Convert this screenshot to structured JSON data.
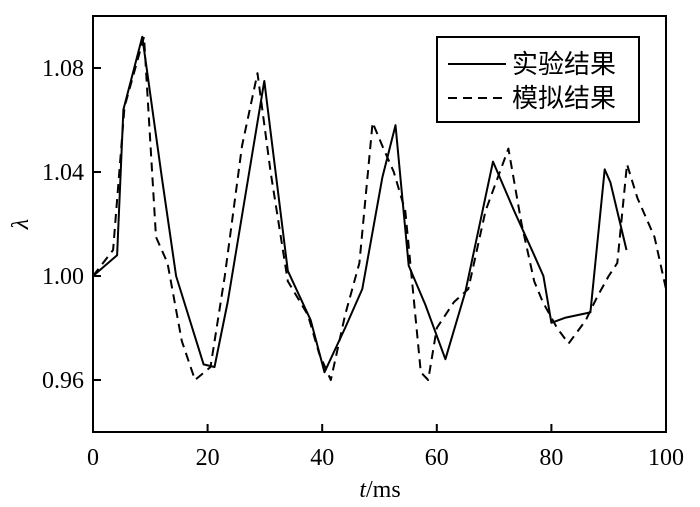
{
  "chart_data": {
    "type": "line",
    "xlabel_italic": "t",
    "xlabel_unit": "/ms",
    "ylabel": "λ",
    "xlim": [
      0,
      100
    ],
    "ylim": [
      0.94,
      1.1
    ],
    "x_ticks": [
      0,
      20,
      40,
      60,
      80,
      100
    ],
    "x_tick_labels": [
      "0",
      "20",
      "40",
      "60",
      "80",
      "100"
    ],
    "y_ticks": [
      0.96,
      1.0,
      1.04,
      1.08
    ],
    "y_tick_labels": [
      "0.96",
      "1.00",
      "1.04",
      "1.08"
    ],
    "legend_position": "top-right",
    "series": [
      {
        "name": "实验结果",
        "style": "solid",
        "x": [
          0,
          4.2,
          5.3,
          8.6,
          12,
          14.5,
          19.3,
          21.2,
          23.5,
          29.9,
          34,
          38,
          40.4,
          44,
          47,
          50.5,
          52.8,
          55.1,
          58,
          61.5,
          65,
          69.8,
          73.5,
          77,
          78.6,
          80,
          82.5,
          86.8,
          89.3,
          90.3,
          93.1
        ],
        "y": [
          1.0,
          1.008,
          1.064,
          1.092,
          1.038,
          1.0,
          0.966,
          0.965,
          0.99,
          1.075,
          1.002,
          0.983,
          0.963,
          0.98,
          0.995,
          1.038,
          1.058,
          1.004,
          0.989,
          0.968,
          0.994,
          1.044,
          1.025,
          1.008,
          1.0,
          0.982,
          0.984,
          0.986,
          1.041,
          1.036,
          1.01
        ]
      },
      {
        "name": "模拟结果",
        "style": "dashed",
        "x": [
          0,
          3.5,
          5.5,
          8.9,
          11,
          13,
          15.5,
          17.8,
          20.5,
          23,
          26,
          28.7,
          31,
          34,
          37.5,
          39.5,
          41.5,
          44,
          46.5,
          48.8,
          50.5,
          52.5,
          54.5,
          57.2,
          58.5,
          60,
          63,
          65.5,
          68.5,
          72.5,
          74.8,
          77,
          78.5,
          81,
          83,
          86,
          88,
          90,
          91.5,
          93.2,
          95,
          98,
          100
        ],
        "y": [
          1.0,
          1.01,
          1.065,
          1.092,
          1.015,
          1.005,
          0.975,
          0.96,
          0.965,
          1.0,
          1.05,
          1.078,
          1.04,
          0.998,
          0.985,
          0.97,
          0.96,
          0.985,
          1.005,
          1.059,
          1.05,
          1.04,
          1.025,
          0.963,
          0.96,
          0.98,
          0.99,
          0.995,
          1.025,
          1.049,
          1.02,
          0.998,
          0.99,
          0.98,
          0.974,
          0.983,
          0.992,
          1.0,
          1.005,
          1.043,
          1.03,
          1.015,
          0.995
        ]
      }
    ]
  }
}
